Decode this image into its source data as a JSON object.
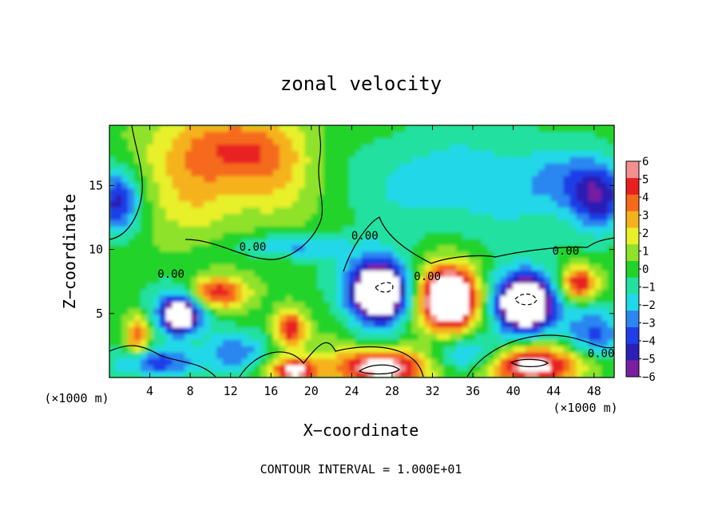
{
  "chart_data": {
    "type": "heatmap",
    "title": "zonal velocity",
    "xlabel": "X−coordinate",
    "ylabel": "Z−coordinate",
    "x_unit_left": "(×1000 m)",
    "x_unit_right": "(×1000 m)",
    "footer": "CONTOUR INTERVAL = 1.000E+01",
    "xlim": [
      0,
      50
    ],
    "ylim": [
      0,
      19.7
    ],
    "x_ticks": [
      4,
      8,
      12,
      16,
      20,
      24,
      28,
      32,
      36,
      40,
      44,
      48
    ],
    "x_tick_labels": [
      "4",
      "8",
      "12",
      "16",
      "20",
      "24",
      "28",
      "32",
      "36",
      "40",
      "44",
      "48"
    ],
    "y_ticks": [
      5,
      10,
      15
    ],
    "y_tick_labels": [
      "5",
      "10",
      "15"
    ],
    "colorbar": {
      "min": -6,
      "max": 6,
      "tick_values": [
        6,
        5,
        4,
        3,
        2,
        1,
        0,
        -1,
        -2,
        -3,
        -4,
        -5,
        -6
      ],
      "tick_labels": [
        "6",
        "5",
        "4",
        "3",
        "2",
        "1",
        "0",
        "−1",
        "−2",
        "−3",
        "−4",
        "−5",
        "−6"
      ],
      "colors": [
        "#7a1fa2",
        "#2b1fb4",
        "#1f3ee8",
        "#2a86f0",
        "#21d8e8",
        "#22e0a0",
        "#23d32a",
        "#8ee22a",
        "#e8f02a",
        "#f5b21f",
        "#f56a1a",
        "#e82020",
        "#f29090"
      ]
    },
    "contour_labels": [
      {
        "text": "0.00",
        "x": 14.2,
        "y": 9.9
      },
      {
        "text": "0.00",
        "x": 6.1,
        "y": 7.8
      },
      {
        "text": "0.00",
        "x": 25.3,
        "y": 10.8
      },
      {
        "text": "0.00",
        "x": 31.5,
        "y": 7.6
      },
      {
        "text": "0.00",
        "x": 45.2,
        "y": 9.6
      },
      {
        "text": "0.00",
        "x": 48.7,
        "y": 1.6
      }
    ],
    "features": [
      {
        "x": 11.5,
        "y": 18.0,
        "rx": 6.5,
        "ry": 3.0,
        "value": 4.0
      },
      {
        "x": 8.0,
        "y": 14.0,
        "rx": 4.5,
        "ry": 3.5,
        "value": 2.0
      },
      {
        "x": 16.5,
        "y": 15.5,
        "rx": 4.0,
        "ry": 4.0,
        "value": 2.0
      },
      {
        "x": 0.8,
        "y": 13.8,
        "rx": 2.2,
        "ry": 2.5,
        "value": -5.0
      },
      {
        "x": 48.5,
        "y": 14.0,
        "rx": 2.8,
        "ry": 2.6,
        "value": -5.0
      },
      {
        "x": 45.0,
        "y": 15.5,
        "rx": 4.0,
        "ry": 2.5,
        "value": -2.0
      },
      {
        "x": 28.0,
        "y": 15.0,
        "rx": 6.0,
        "ry": 3.5,
        "value": -0.8
      },
      {
        "x": 38.0,
        "y": 13.0,
        "rx": 7.0,
        "ry": 4.0,
        "value": -0.8
      },
      {
        "x": 18.0,
        "y": 10.3,
        "rx": 5.0,
        "ry": 1.0,
        "value": -3.0
      },
      {
        "x": 10.5,
        "y": 6.6,
        "rx": 3.0,
        "ry": 1.3,
        "value": 6.5
      },
      {
        "x": 7.0,
        "y": 4.8,
        "rx": 1.6,
        "ry": 1.3,
        "value": -7.0
      },
      {
        "x": 7.5,
        "y": 5.5,
        "rx": 3.5,
        "ry": 2.0,
        "value": -4.0
      },
      {
        "x": 2.8,
        "y": 3.2,
        "rx": 1.2,
        "ry": 1.8,
        "value": 4.5
      },
      {
        "x": 4.5,
        "y": 1.2,
        "rx": 4.0,
        "ry": 1.2,
        "value": -4.5
      },
      {
        "x": 12.5,
        "y": 2.0,
        "rx": 3.0,
        "ry": 1.5,
        "value": -3.5
      },
      {
        "x": 18.0,
        "y": 3.8,
        "rx": 1.5,
        "ry": 1.5,
        "value": 5.5
      },
      {
        "x": 18.3,
        "y": 0.6,
        "rx": 2.3,
        "ry": 0.9,
        "value": 6.5
      },
      {
        "x": 26.8,
        "y": 6.6,
        "rx": 2.6,
        "ry": 2.2,
        "value": -7.0
      },
      {
        "x": 26.5,
        "y": 7.0,
        "rx": 4.0,
        "ry": 3.0,
        "value": -4.0
      },
      {
        "x": 33.6,
        "y": 6.2,
        "rx": 2.6,
        "ry": 2.2,
        "value": 7.0
      },
      {
        "x": 33.6,
        "y": 6.2,
        "rx": 3.6,
        "ry": 3.2,
        "value": 4.0
      },
      {
        "x": 41.2,
        "y": 5.8,
        "rx": 2.6,
        "ry": 2.0,
        "value": -7.0
      },
      {
        "x": 41.0,
        "y": 6.0,
        "rx": 3.8,
        "ry": 2.8,
        "value": -4.0
      },
      {
        "x": 46.5,
        "y": 7.4,
        "rx": 1.8,
        "ry": 1.3,
        "value": 6.0
      },
      {
        "x": 27.0,
        "y": 0.8,
        "rx": 5.0,
        "ry": 1.4,
        "value": 7.0
      },
      {
        "x": 41.8,
        "y": 1.0,
        "rx": 5.0,
        "ry": 1.6,
        "value": 7.0
      },
      {
        "x": 35.5,
        "y": 1.8,
        "rx": 4.0,
        "ry": 1.6,
        "value": -4.0
      },
      {
        "x": 22.0,
        "y": 3.0,
        "rx": 1.8,
        "ry": 2.6,
        "value": 0.5
      },
      {
        "x": 48.0,
        "y": 3.5,
        "rx": 3.0,
        "ry": 2.0,
        "value": -4.0
      }
    ]
  }
}
